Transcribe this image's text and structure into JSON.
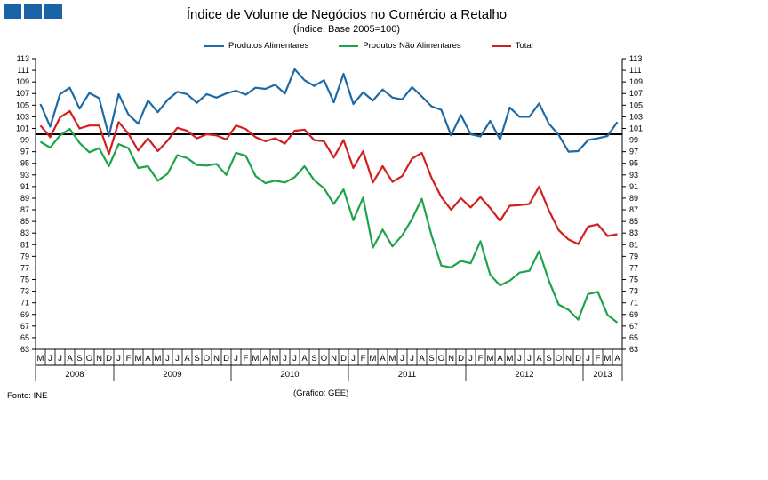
{
  "title": "Índice de Volume de Negócios no Comércio a Retalho",
  "subtitle": "(Índice, Base 2005=100)",
  "source": "Fonte: INE",
  "credit": "(Gráfico: GEE)",
  "chart_data": {
    "type": "line",
    "ylim": [
      63,
      113
    ],
    "yticks": [
      63,
      65,
      67,
      69,
      71,
      73,
      75,
      77,
      79,
      81,
      83,
      85,
      87,
      89,
      91,
      93,
      95,
      97,
      99,
      101,
      103,
      105,
      107,
      109,
      111,
      113
    ],
    "reference_line": 100,
    "months": [
      "M",
      "J",
      "J",
      "A",
      "S",
      "O",
      "N",
      "D",
      "J",
      "F",
      "M",
      "A",
      "M",
      "J",
      "J",
      "A",
      "S",
      "O",
      "N",
      "D",
      "J",
      "F",
      "M",
      "A",
      "M",
      "J",
      "J",
      "A",
      "S",
      "O",
      "N",
      "D",
      "J",
      "F",
      "M",
      "A",
      "M",
      "J",
      "J",
      "A",
      "S",
      "O",
      "N",
      "D",
      "J",
      "F",
      "M",
      "A",
      "M",
      "J",
      "J",
      "A",
      "S",
      "O",
      "N",
      "D",
      "J",
      "F",
      "M",
      "A"
    ],
    "years": [
      {
        "label": "2008",
        "start": 0,
        "count": 8
      },
      {
        "label": "2009",
        "start": 8,
        "count": 12
      },
      {
        "label": "2010",
        "start": 20,
        "count": 12
      },
      {
        "label": "2011",
        "start": 32,
        "count": 12
      },
      {
        "label": "2012",
        "start": 44,
        "count": 12
      },
      {
        "label": "2013",
        "start": 56,
        "count": 4
      }
    ],
    "series": [
      {
        "name": "Produtos Alimentares",
        "color": "#1f6aa5",
        "values": [
          105.2,
          101.3,
          106.9,
          108,
          104.4,
          107.1,
          106.2,
          99.7,
          106.9,
          103.4,
          101.8,
          105.8,
          103.8,
          105.9,
          107.3,
          106.9,
          105.4,
          106.9,
          106.3,
          107,
          107.5,
          106.8,
          108,
          107.8,
          108.5,
          107,
          111.2,
          109.3,
          108.3,
          109.3,
          105.5,
          110.4,
          105.2,
          107.2,
          105.8,
          107.7,
          106.3,
          106,
          108.1,
          106.5,
          104.8,
          104.2,
          99.8,
          103.3,
          100,
          99.6,
          102.3,
          99.1,
          104.6,
          103,
          103,
          105.3,
          101.8,
          99.9,
          97,
          97.1,
          99,
          99.3,
          99.7,
          102.1
        ]
      },
      {
        "name": "Produtos Não Alimentares",
        "color": "#1ea34a",
        "values": [
          98.7,
          97.7,
          99.8,
          100.9,
          98.5,
          96.9,
          97.6,
          94.5,
          98.3,
          97.6,
          94.2,
          94.5,
          92,
          93.2,
          96.4,
          95.9,
          94.7,
          94.6,
          94.9,
          93,
          96.8,
          96.3,
          92.8,
          91.6,
          92,
          91.7,
          92.6,
          94.5,
          92.1,
          90.7,
          88,
          90.5,
          85.2,
          89.1,
          80.5,
          83.6,
          80.7,
          82.6,
          85.4,
          88.9,
          82.6,
          77.4,
          77.1,
          78.2,
          77.8,
          81.6,
          75.8,
          74,
          74.8,
          76.2,
          76.5,
          79.9,
          74.8,
          70.7,
          69.8,
          68.1,
          72.5,
          72.9,
          68.9,
          67.6
        ]
      },
      {
        "name": "Total",
        "color": "#d21f1f",
        "values": [
          101.5,
          99.5,
          102.9,
          104,
          101,
          101.5,
          101.5,
          96.6,
          102.1,
          100.1,
          97.2,
          99.3,
          97.1,
          98.9,
          101.1,
          100.6,
          99.3,
          100,
          99.8,
          99.1,
          101.5,
          100.9,
          99.5,
          98.8,
          99.3,
          98.4,
          100.6,
          100.8,
          99,
          98.8,
          96,
          99,
          94.2,
          97.1,
          91.7,
          94.5,
          91.8,
          92.8,
          95.8,
          96.8,
          92.5,
          89.2,
          87,
          89,
          87.4,
          89.2,
          87.3,
          85.1,
          87.7,
          87.8,
          88,
          91,
          86.9,
          83.5,
          81.9,
          81.1,
          84.1,
          84.5,
          82.5,
          82.8
        ]
      }
    ]
  }
}
